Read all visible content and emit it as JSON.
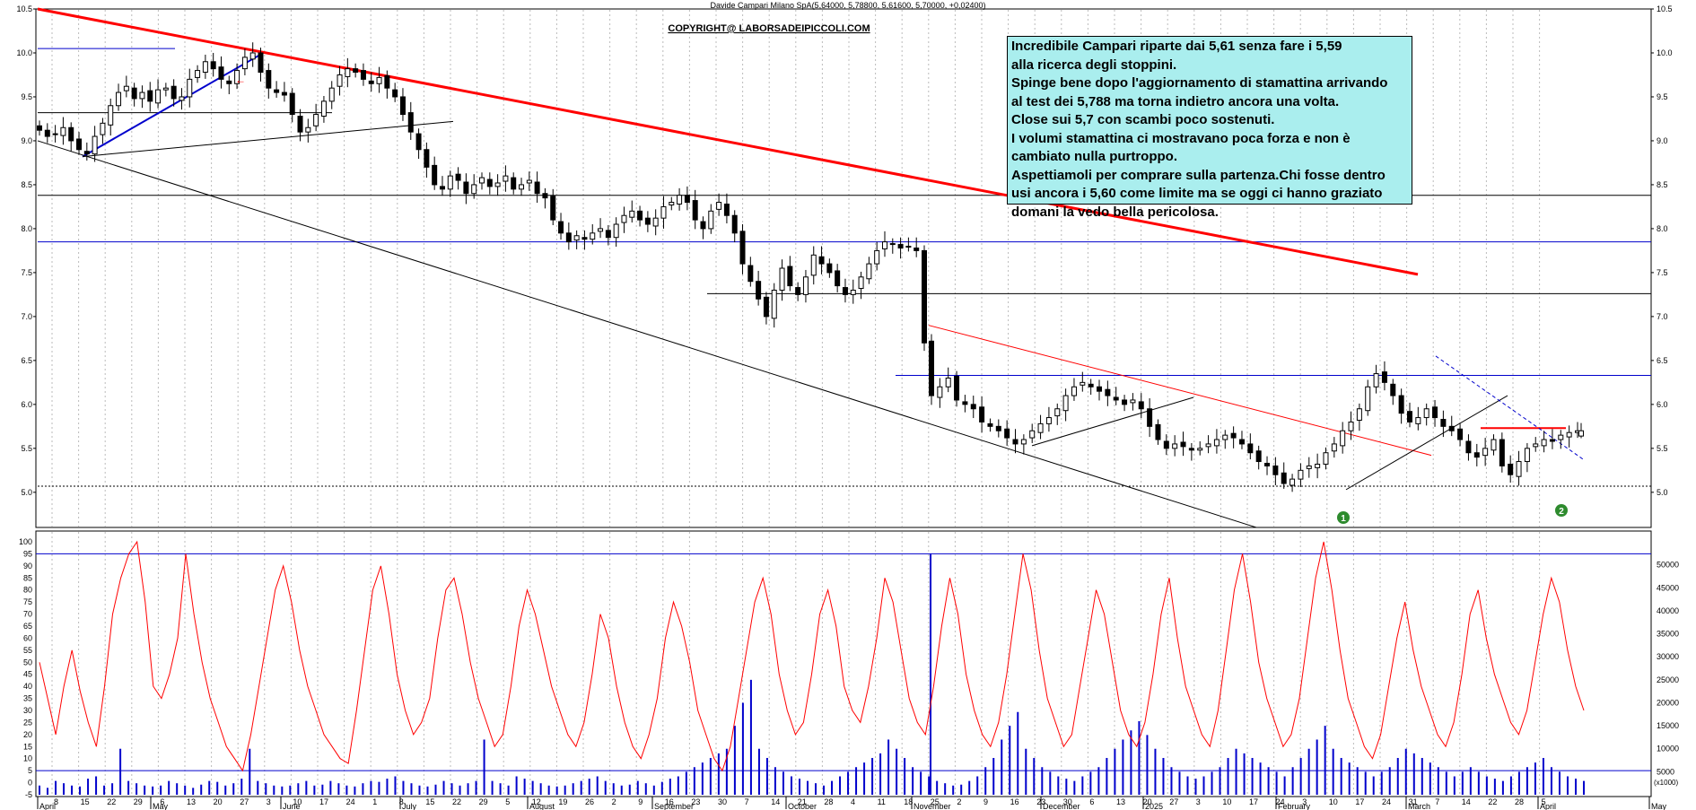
{
  "header": {
    "title": "Davide Campari Milano SpA(5,64000, 5,78800, 5,61600, 5,70000, +0,02400)",
    "copyright": "COPYRIGHT@ LABORSADEIPICCOLI.COM"
  },
  "commentary": [
    "Incredibile Campari riparte dai 5,61 senza fare i 5,59",
    "alla ricerca degli stoppini.",
    "Spinge bene dopo l'aggiornamento di stamattina arrivando",
    "al test dei 5,788 ma torna indietro ancora una volta.",
    "Close sui 5,7 con scambi poco sostenuti.",
    "I volumi stamattina ci mostravano poca forza e non è",
    "cambiato nulla purtroppo.",
    "Aspettiamoli per comprare sulla partenza.Chi fosse dentro",
    "usi ancora i 5,60 come limite ma se oggi ci hanno graziato",
    "domani la vedo bella pericolosa."
  ],
  "markers": [
    {
      "label": "1",
      "color": "#2e8b2e"
    },
    {
      "label": "2",
      "color": "#2e8b2e"
    }
  ],
  "chart_data": [
    {
      "type": "candlestick",
      "x_axis": {
        "months": [
          "April",
          "May",
          "June",
          "July",
          "August",
          "September",
          "October",
          "November",
          "December",
          "2025",
          "February",
          "March",
          "April",
          "May"
        ],
        "day_ticks": [
          "8",
          "15",
          "22",
          "29",
          "6",
          "13",
          "20",
          "27",
          "3",
          "10",
          "17",
          "24",
          "1",
          "8",
          "15",
          "22",
          "29",
          "5",
          "12",
          "19",
          "26",
          "2",
          "9",
          "16",
          "23",
          "30",
          "7",
          "14",
          "21",
          "28",
          "4",
          "11",
          "18",
          "25",
          "2",
          "9",
          "16",
          "23",
          "30",
          "6",
          "13",
          "20",
          "27",
          "3",
          "10",
          "17",
          "24",
          "3",
          "10",
          "17",
          "24",
          "31",
          "7",
          "14",
          "22",
          "28",
          "5"
        ]
      },
      "y_axis": {
        "ylim": [
          4.6,
          10.5
        ],
        "ticks": [
          "10.5",
          "10.0",
          "9.5",
          "9.0",
          "8.5",
          "8.0",
          "7.5",
          "7.0",
          "6.5",
          "6.0",
          "5.5",
          "5.0"
        ]
      },
      "last_candle": {
        "open": 5.64,
        "high": 5.788,
        "low": 5.616,
        "close": 5.7
      },
      "horizontal_levels": [
        {
          "value": 10.05,
          "color": "#0000cc"
        },
        {
          "value": 9.32,
          "color": "#000000"
        },
        {
          "value": 8.38,
          "color": "#000000"
        },
        {
          "value": 7.85,
          "color": "#0000cc"
        },
        {
          "value": 7.26,
          "color": "#000000"
        },
        {
          "value": 6.33,
          "color": "#0000cc"
        },
        {
          "value": 5.73,
          "color": "#ff0000"
        },
        {
          "value": 5.07,
          "color": "#000000",
          "style": "dotted"
        }
      ],
      "trendlines": [
        {
          "from": [
            "April",
            10.5
          ],
          "to": [
            "March",
            7.48
          ],
          "color": "#ff0000",
          "width": 3
        },
        {
          "from": [
            "April",
            8.82
          ],
          "to": [
            "May",
            9.98
          ],
          "color": "#0000cc",
          "width": 2
        },
        {
          "from": [
            "April",
            8.82
          ],
          "to": [
            "July",
            9.22
          ],
          "color": "#000000",
          "width": 1
        },
        {
          "from": [
            "April",
            9.0
          ],
          "to": [
            "November",
            4.6
          ],
          "color": "#000000",
          "width": 1
        },
        {
          "from": [
            "November",
            6.9
          ],
          "to": [
            "March",
            5.42
          ],
          "color": "#ff0000",
          "width": 1
        }
      ],
      "closes": [
        9.12,
        9.05,
        9.08,
        9.15,
        9.0,
        8.9,
        8.85,
        9.05,
        9.2,
        9.4,
        9.55,
        9.62,
        9.48,
        9.55,
        9.45,
        9.58,
        9.6,
        9.48,
        9.5,
        9.7,
        9.8,
        9.9,
        9.82,
        9.7,
        9.65,
        9.8,
        9.95,
        10.0,
        9.78,
        9.6,
        9.55,
        9.52,
        9.3,
        9.1,
        9.15,
        9.3,
        9.45,
        9.6,
        9.75,
        9.82,
        9.78,
        9.7,
        9.65,
        9.72,
        9.6,
        9.5,
        9.3,
        9.1,
        8.9,
        8.7,
        8.5,
        8.45,
        8.6,
        8.55,
        8.4,
        8.5,
        8.58,
        8.48,
        8.52,
        8.6,
        8.45,
        8.5,
        8.55,
        8.4,
        8.35,
        8.1,
        7.95,
        7.85,
        7.92,
        7.88,
        7.95,
        8.0,
        7.9,
        8.05,
        8.15,
        8.2,
        8.1,
        8.05,
        8.12,
        8.25,
        8.3,
        8.38,
        8.3,
        8.1,
        8.0,
        8.2,
        8.3,
        8.15,
        7.95,
        7.6,
        7.4,
        7.2,
        7.0,
        7.3,
        7.55,
        7.35,
        7.25,
        7.45,
        7.7,
        7.6,
        7.5,
        7.35,
        7.25,
        7.3,
        7.45,
        7.6,
        7.75,
        7.85,
        7.82,
        7.78,
        7.8,
        7.75,
        6.7,
        6.1,
        6.2,
        6.3,
        6.05,
        6.0,
        5.95,
        5.8,
        5.75,
        5.7,
        5.62,
        5.55,
        5.6,
        5.7,
        5.78,
        5.85,
        5.95,
        6.1,
        6.2,
        6.25,
        6.2,
        6.15,
        6.1,
        6.05,
        6.0,
        6.05,
        5.95,
        5.75,
        5.6,
        5.5,
        5.55,
        5.52,
        5.48,
        5.5,
        5.55,
        5.6,
        5.65,
        5.62,
        5.55,
        5.45,
        5.35,
        5.3,
        5.2,
        5.1,
        5.15,
        5.25,
        5.3,
        5.32,
        5.45,
        5.55,
        5.7,
        5.8,
        5.95,
        6.2,
        6.35,
        6.25,
        6.1,
        5.9,
        5.8,
        5.85,
        5.95,
        5.85,
        5.75,
        5.7,
        5.6,
        5.45,
        5.4,
        5.5,
        5.6,
        5.3,
        5.2,
        5.35,
        5.5,
        5.55,
        5.6,
        5.58,
        5.65,
        5.68,
        5.7
      ]
    },
    {
      "type": "line+bar",
      "y_axis_left": {
        "ylim": [
          -5,
          100
        ],
        "ticks": [
          "100",
          "95",
          "90",
          "85",
          "80",
          "75",
          "70",
          "65",
          "60",
          "55",
          "50",
          "45",
          "40",
          "35",
          "30",
          "25",
          "20",
          "15",
          "10",
          "5",
          "0",
          "-5"
        ]
      },
      "y_axis_right": {
        "ylim": [
          0,
          55000
        ],
        "ticks": [
          "50000",
          "45000",
          "40000",
          "35000",
          "30000",
          "25000",
          "20000",
          "15000",
          "10000",
          "5000"
        ],
        "unit_label": "(x1000)"
      },
      "reference_lines": [
        95,
        5
      ],
      "oscillator": [
        50,
        35,
        20,
        40,
        55,
        38,
        25,
        15,
        40,
        70,
        85,
        95,
        100,
        75,
        40,
        35,
        45,
        60,
        95,
        70,
        50,
        35,
        25,
        15,
        10,
        5,
        20,
        40,
        60,
        80,
        90,
        75,
        55,
        40,
        30,
        20,
        15,
        10,
        8,
        30,
        55,
        80,
        90,
        70,
        45,
        30,
        20,
        25,
        35,
        60,
        80,
        85,
        70,
        50,
        35,
        25,
        15,
        20,
        40,
        65,
        80,
        70,
        55,
        40,
        30,
        20,
        15,
        25,
        45,
        70,
        60,
        40,
        25,
        15,
        10,
        20,
        35,
        60,
        75,
        65,
        50,
        30,
        20,
        10,
        5,
        15,
        35,
        55,
        75,
        85,
        70,
        45,
        30,
        20,
        25,
        45,
        70,
        80,
        65,
        40,
        30,
        25,
        40,
        60,
        85,
        75,
        55,
        35,
        25,
        20,
        40,
        65,
        85,
        70,
        45,
        30,
        20,
        15,
        25,
        45,
        70,
        95,
        80,
        55,
        35,
        25,
        15,
        20,
        40,
        60,
        80,
        70,
        50,
        30,
        20,
        15,
        25,
        45,
        70,
        85,
        60,
        40,
        30,
        20,
        15,
        30,
        55,
        80,
        95,
        75,
        50,
        35,
        25,
        15,
        20,
        35,
        60,
        85,
        100,
        80,
        55,
        35,
        25,
        15,
        10,
        20,
        40,
        60,
        75,
        55,
        40,
        30,
        20,
        15,
        25,
        45,
        70,
        80,
        60,
        45,
        35,
        25,
        20,
        30,
        50,
        70,
        85,
        75,
        55,
        40,
        30
      ],
      "volume": [
        2,
        1.5,
        3,
        2.5,
        2,
        1.8,
        3.5,
        4,
        2,
        2.5,
        10,
        3,
        2.5,
        2,
        1.8,
        2,
        3,
        2.5,
        2,
        1.5,
        2.2,
        3,
        2.8,
        2,
        2.5,
        3.5,
        10,
        3,
        2.5,
        2,
        1.8,
        2,
        2.5,
        3,
        2,
        2.2,
        3,
        2.5,
        2,
        1.8,
        2.5,
        3,
        2.8,
        3.5,
        4,
        3,
        2.5,
        2,
        1.8,
        2.2,
        3,
        2.5,
        2,
        2.5,
        3,
        12,
        3,
        2.5,
        2,
        4,
        3.5,
        3,
        2.5,
        2,
        1.8,
        2,
        2.5,
        3,
        3.5,
        4,
        3,
        2.5,
        2,
        2.2,
        3,
        2.5,
        2,
        2.8,
        3.5,
        4,
        5,
        6,
        7,
        8,
        9,
        10,
        15,
        20,
        25,
        10,
        8,
        6,
        5,
        4,
        3.5,
        3,
        2.5,
        2,
        3,
        4,
        5,
        6,
        7,
        8,
        9,
        12,
        10,
        8,
        6,
        5,
        4,
        3,
        2.5,
        2,
        2.2,
        3,
        4,
        6,
        8,
        12,
        15,
        18,
        10,
        8,
        6,
        5,
        4,
        3.5,
        3,
        4,
        5,
        6,
        8,
        10,
        12,
        14,
        16,
        13,
        10,
        8,
        6,
        5,
        4,
        3.5,
        4,
        5,
        6,
        8,
        10,
        9,
        8,
        7,
        6,
        5,
        4,
        6,
        8,
        10,
        12,
        15,
        10,
        8,
        7,
        6,
        5,
        4,
        5,
        6,
        8,
        10,
        9,
        8,
        7,
        6,
        5,
        4,
        5,
        6,
        5,
        4,
        3.5,
        3,
        4,
        5,
        6,
        7,
        8,
        6,
        5,
        4,
        3.5,
        3
      ]
    }
  ]
}
